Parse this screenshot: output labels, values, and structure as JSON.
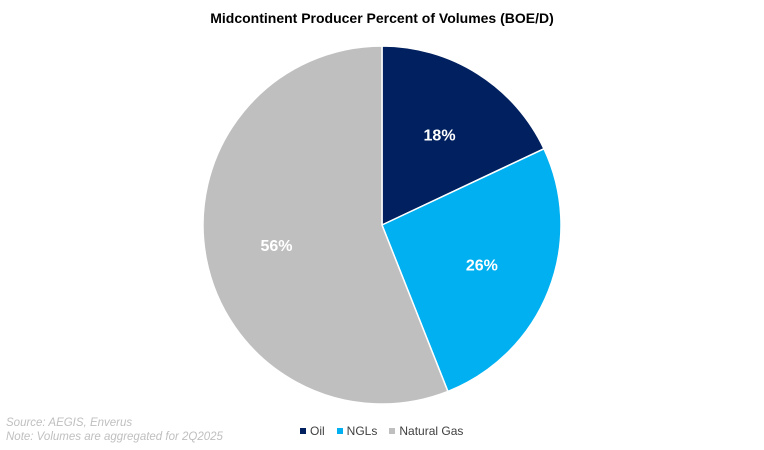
{
  "chart_data": {
    "type": "pie",
    "title": "Midcontinent Producer Percent of Volumes (BOE/D)",
    "categories": [
      "Oil",
      "NGLs",
      "Natural Gas"
    ],
    "values": [
      18,
      26,
      56
    ],
    "labels": [
      "18%",
      "26%",
      "56%"
    ],
    "colors": [
      "#002060",
      "#00B0F0",
      "#BFBFBF"
    ],
    "legend_position": "bottom"
  },
  "footer": {
    "source": "Source: AEGIS, Enverus",
    "note": "Note: Volumes are aggregated for 2Q2025"
  }
}
